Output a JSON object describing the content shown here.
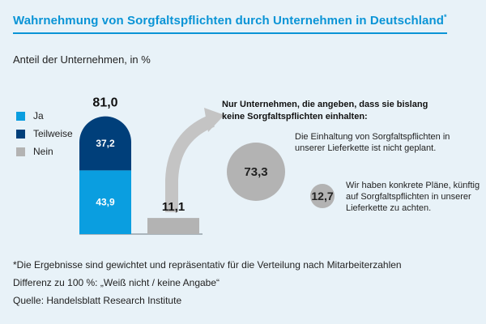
{
  "title": "Wahrnehmung von Sorgfaltspflichten durch Unternehmen in Deutschland",
  "title_marker": "*",
  "subtitle": "Anteil der Unternehmen, in %",
  "legend": [
    {
      "label": "Ja",
      "color": "#0a9ee0"
    },
    {
      "label": "Teilweise",
      "color": "#003f7a"
    },
    {
      "label": "Nein",
      "color": "#b3b3b3"
    }
  ],
  "chart_data": [
    {
      "type": "bar",
      "stacked": true,
      "categories": [
        "Ja/Teilweise",
        "Nein"
      ],
      "series": [
        {
          "name": "Ja",
          "values": [
            43.9,
            null
          ],
          "labels": [
            "43,9",
            ""
          ],
          "color": "#0a9ee0"
        },
        {
          "name": "Teilweise",
          "values": [
            37.2,
            null
          ],
          "labels": [
            "37,2",
            ""
          ],
          "color": "#003f7a"
        },
        {
          "name": "Nein",
          "values": [
            null,
            11.1
          ],
          "labels": [
            "",
            "11,1"
          ],
          "color": "#b3b3b3"
        }
      ],
      "totals": [
        {
          "value": 81.0,
          "label": "81,0"
        }
      ],
      "ylim": [
        0,
        100
      ]
    },
    {
      "type": "bubble",
      "heading": "Nur Unternehmen, die angeben, dass sie bislang keine Sorgfaltspflichten einhalten:",
      "values": [
        73.3,
        12.7
      ],
      "labels": [
        "73,3",
        "12,7"
      ],
      "annotations": [
        "Die Einhaltung von Sorgfaltspflichten in unserer Lieferkette ist nicht geplant.",
        "Wir haben konkrete Pläne, künftig auf Sorgfaltspflichten in unserer Lieferkette zu achten."
      ],
      "color": "#b3b3b3"
    }
  ],
  "footnotes": [
    "*Die Ergebnisse sind gewichtet und repräsentativ für die Verteilung nach Mitarbeiterzahlen",
    "Differenz zu 100 %: „Weiß nicht / keine Angabe“",
    "Quelle: Handelsblatt Research Institute"
  ]
}
